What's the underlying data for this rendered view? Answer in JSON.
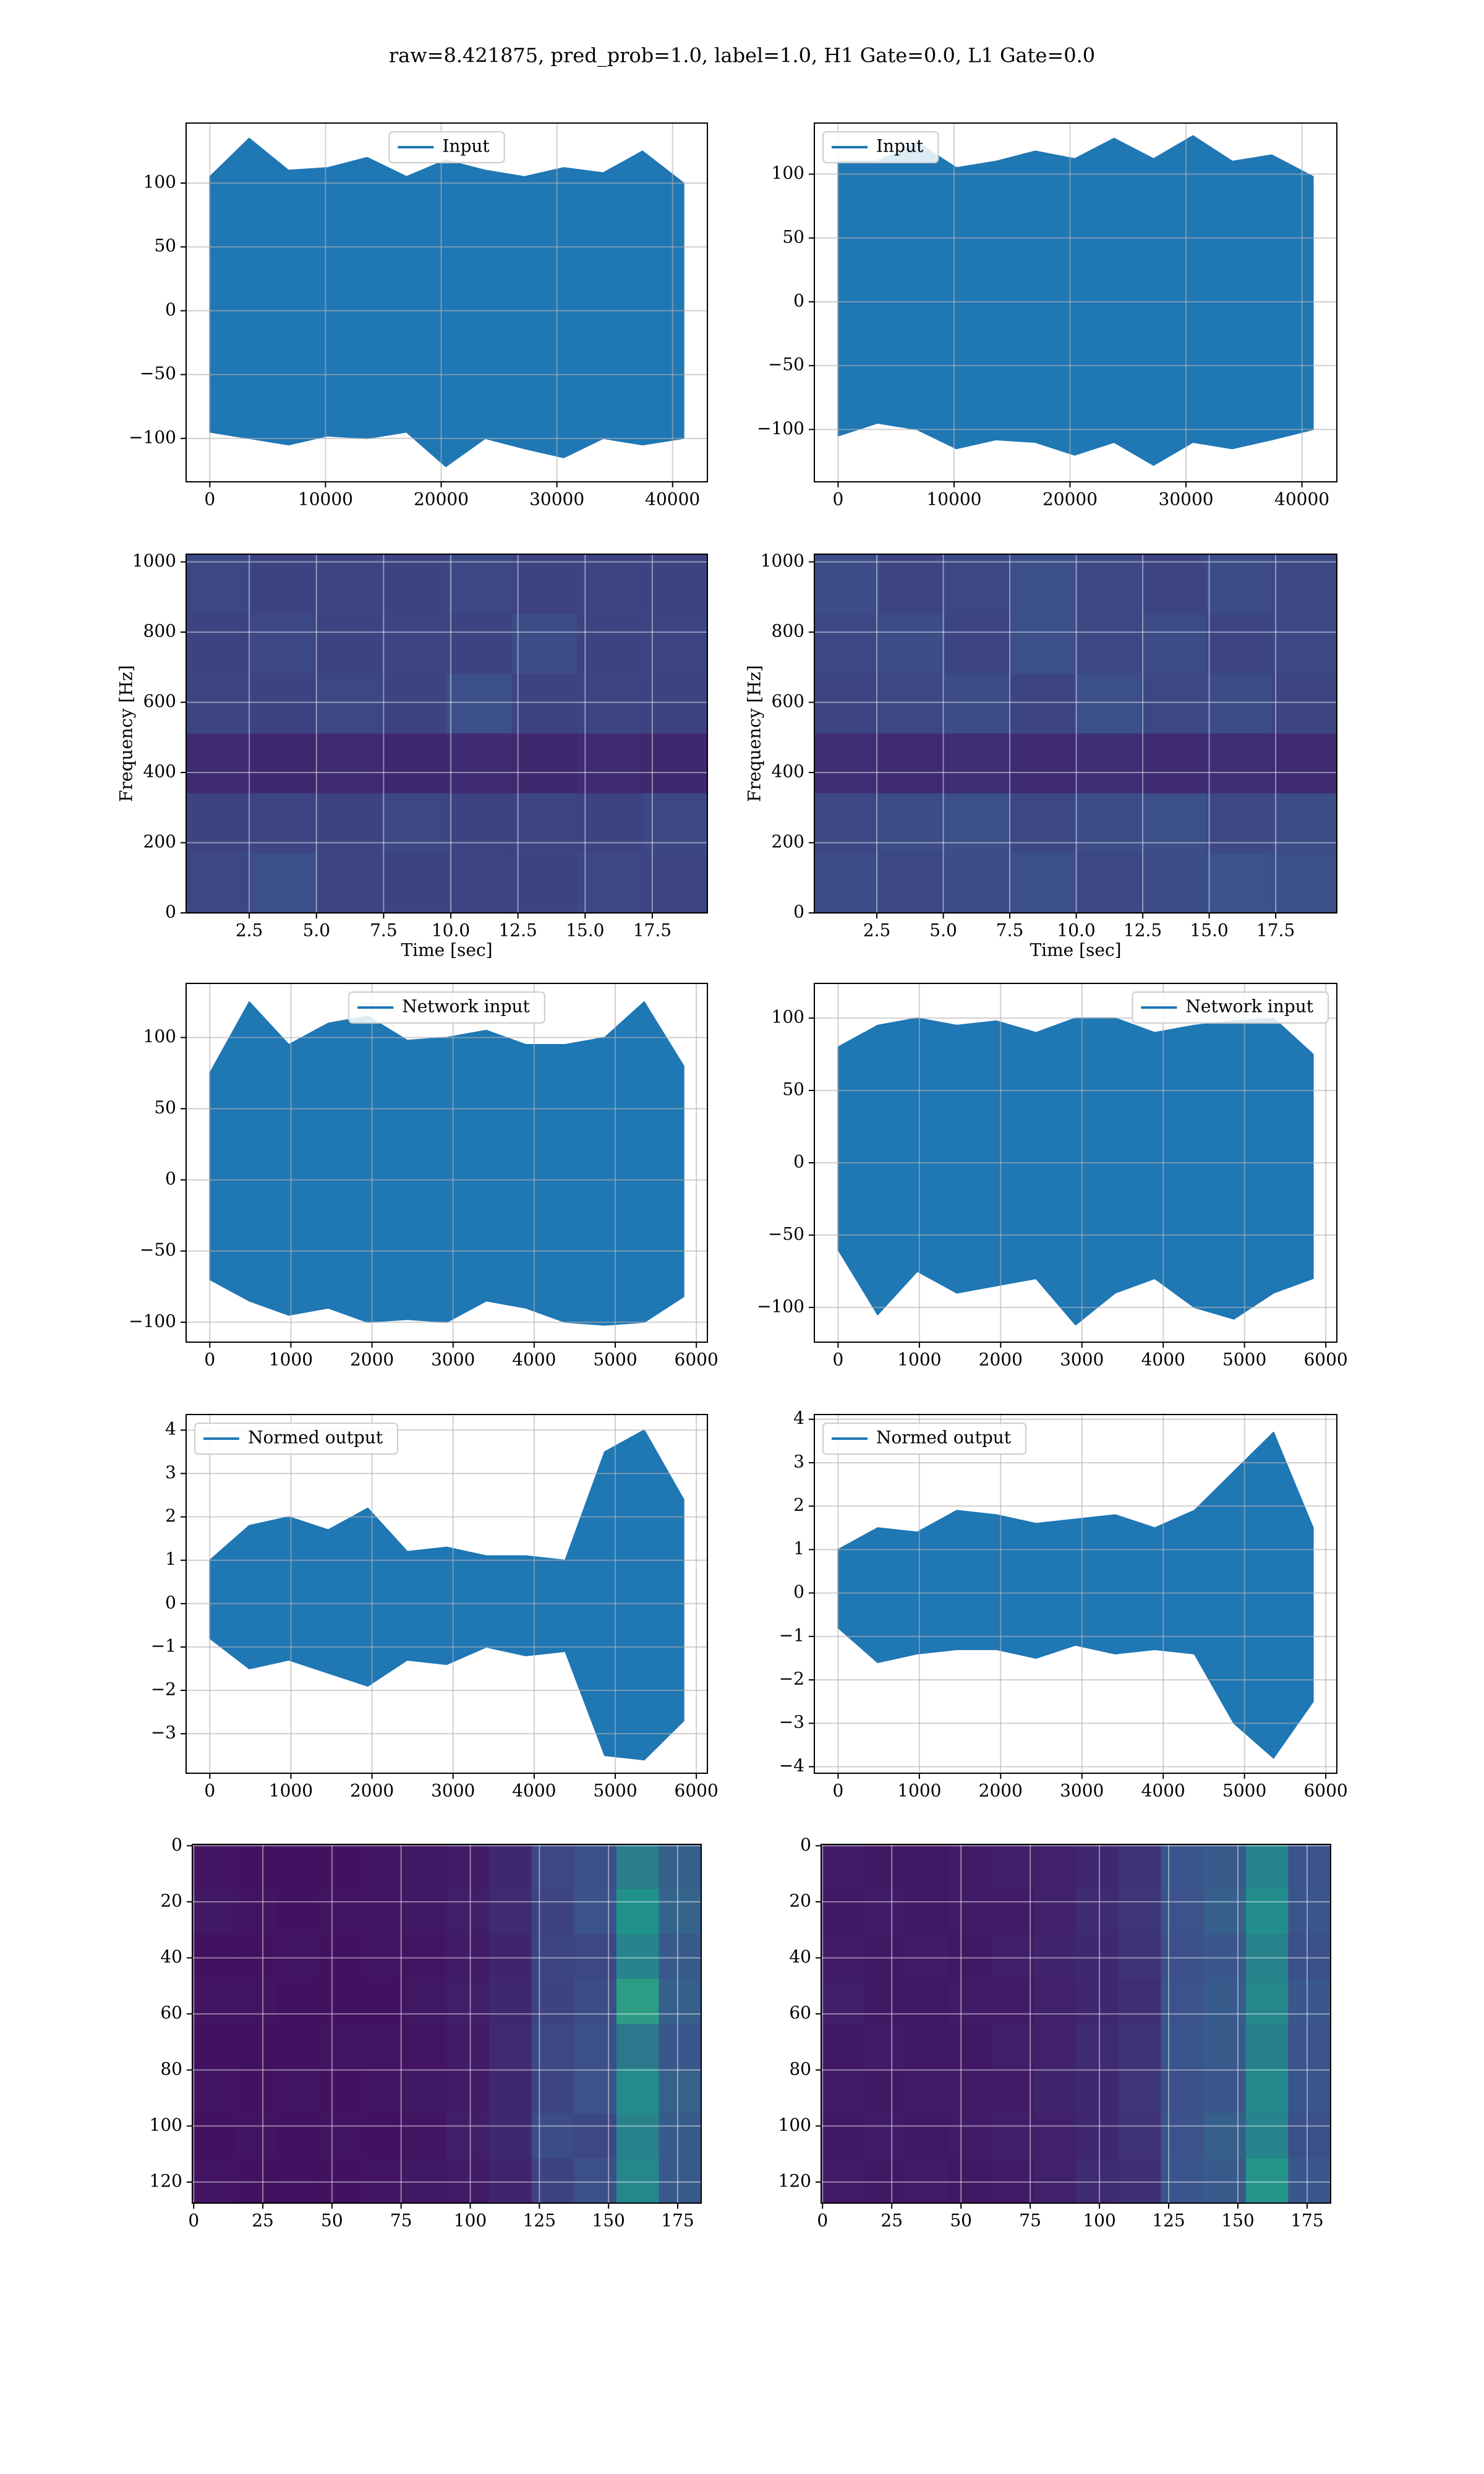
{
  "title": "raw=8.421875, pred_prob=1.0, label=1.0, H1 Gate=0.0, L1 Gate=0.0",
  "chart_data": [
    {
      "type": "line",
      "legend": "upper center",
      "grid": true,
      "x": [
        0,
        3400,
        6800,
        10200,
        13600,
        17000,
        20400,
        23800,
        27200,
        30600,
        34000,
        37400,
        40960
      ],
      "series": [
        {
          "name": "Input",
          "color": "#1f77b4",
          "high": [
            105,
            135,
            110,
            112,
            120,
            105,
            118,
            110,
            105,
            112,
            108,
            125,
            100
          ],
          "low": [
            -95,
            -100,
            -105,
            -98,
            -100,
            -95,
            -122,
            -100,
            -108,
            -115,
            -100,
            -105,
            -100
          ]
        }
      ],
      "xlim": [
        -2048,
        43008
      ],
      "ylim": [
        -134,
        147
      ],
      "xticks": [
        0,
        10000,
        20000,
        30000,
        40000
      ],
      "yticks": [
        {
          "value": -100,
          "label": "−100"
        },
        {
          "value": -50,
          "label": "−50"
        },
        0,
        50,
        100
      ]
    },
    {
      "type": "line",
      "legend": "upper left",
      "grid": true,
      "x": [
        0,
        3400,
        6800,
        10200,
        13600,
        17000,
        20400,
        23800,
        27200,
        30600,
        34000,
        37400,
        40960
      ],
      "series": [
        {
          "name": "Input",
          "color": "#1f77b4",
          "high": [
            110,
            110,
            125,
            105,
            110,
            118,
            112,
            128,
            112,
            130,
            110,
            115,
            98
          ],
          "low": [
            -105,
            -95,
            -100,
            -115,
            -108,
            -110,
            -120,
            -110,
            -128,
            -110,
            -115,
            -108,
            -100
          ]
        }
      ],
      "xlim": [
        -2048,
        43008
      ],
      "ylim": [
        -141,
        140
      ],
      "xticks": [
        0,
        10000,
        20000,
        30000,
        40000
      ],
      "yticks": [
        {
          "value": -100,
          "label": "−100"
        },
        {
          "value": -50,
          "label": "−50"
        },
        0,
        50,
        100
      ]
    },
    {
      "type": "heatmap",
      "grid": true,
      "xlabel": "Time [sec]",
      "ylabel": "Frequency [Hz]",
      "z": [
        [
          0.22,
          0.2,
          0.21,
          0.2,
          0.22,
          0.2,
          0.21,
          0.2
        ],
        [
          0.2,
          0.22,
          0.2,
          0.21,
          0.2,
          0.23,
          0.2,
          0.21
        ],
        [
          0.21,
          0.2,
          0.22,
          0.2,
          0.24,
          0.2,
          0.21,
          0.2
        ],
        [
          0.13,
          0.12,
          0.13,
          0.12,
          0.13,
          0.12,
          0.13,
          0.12
        ],
        [
          0.2,
          0.21,
          0.2,
          0.22,
          0.2,
          0.21,
          0.2,
          0.22
        ],
        [
          0.22,
          0.24,
          0.21,
          0.2,
          0.21,
          0.2,
          0.22,
          0.21
        ]
      ],
      "xlim": [
        0.15,
        19.55
      ],
      "ylim": [
        0,
        1022
      ],
      "xticks": [
        2.5,
        {
          "value": 5,
          "label": "5.0"
        },
        7.5,
        {
          "value": 10,
          "label": "10.0"
        },
        12.5,
        {
          "value": 15,
          "label": "15.0"
        },
        17.5
      ],
      "yticks": [
        0,
        200,
        400,
        600,
        800,
        1000
      ]
    },
    {
      "type": "heatmap",
      "grid": true,
      "xlabel": "Time [sec]",
      "ylabel": "Frequency [Hz]",
      "z": [
        [
          0.23,
          0.21,
          0.22,
          0.24,
          0.22,
          0.21,
          0.23,
          0.22
        ],
        [
          0.22,
          0.23,
          0.21,
          0.24,
          0.22,
          0.23,
          0.21,
          0.22
        ],
        [
          0.21,
          0.22,
          0.23,
          0.21,
          0.24,
          0.22,
          0.23,
          0.21
        ],
        [
          0.14,
          0.13,
          0.14,
          0.13,
          0.14,
          0.13,
          0.14,
          0.13
        ],
        [
          0.22,
          0.23,
          0.24,
          0.22,
          0.23,
          0.24,
          0.22,
          0.23
        ],
        [
          0.23,
          0.22,
          0.23,
          0.24,
          0.22,
          0.23,
          0.25,
          0.24
        ]
      ],
      "xlim": [
        0.15,
        19.8
      ],
      "ylim": [
        0,
        1022
      ],
      "xticks": [
        2.5,
        {
          "value": 5,
          "label": "5.0"
        },
        7.5,
        {
          "value": 10,
          "label": "10.0"
        },
        12.5,
        {
          "value": 15,
          "label": "15.0"
        },
        17.5
      ],
      "yticks": [
        0,
        200,
        400,
        600,
        800,
        1000
      ]
    },
    {
      "type": "line",
      "legend": "upper center",
      "grid": true,
      "x": [
        0,
        487,
        974,
        1461,
        1948,
        2435,
        2922,
        3409,
        3896,
        4383,
        4870,
        5357,
        5844
      ],
      "series": [
        {
          "name": "Network input",
          "color": "#1f77b4",
          "high": [
            75,
            125,
            95,
            110,
            115,
            98,
            100,
            105,
            95,
            95,
            100,
            125,
            80
          ],
          "low": [
            -70,
            -85,
            -95,
            -90,
            -100,
            -98,
            -100,
            -85,
            -90,
            -100,
            -102,
            -100,
            -82
          ]
        }
      ],
      "xlim": [
        -292,
        6136
      ],
      "ylim": [
        -114,
        138
      ],
      "xticks": [
        0,
        1000,
        2000,
        3000,
        4000,
        5000,
        6000
      ],
      "yticks": [
        {
          "value": -100,
          "label": "−100"
        },
        {
          "value": -50,
          "label": "−50"
        },
        0,
        50,
        100
      ]
    },
    {
      "type": "line",
      "legend": "upper right",
      "grid": true,
      "x": [
        0,
        487,
        974,
        1461,
        1948,
        2435,
        2922,
        3409,
        3896,
        4383,
        4870,
        5357,
        5844
      ],
      "series": [
        {
          "name": "Network input",
          "color": "#1f77b4",
          "high": [
            80,
            95,
            100,
            95,
            98,
            90,
            100,
            100,
            90,
            95,
            98,
            100,
            75
          ],
          "low": [
            -60,
            -105,
            -75,
            -90,
            -85,
            -80,
            -112,
            -90,
            -80,
            -100,
            -108,
            -90,
            -80
          ]
        }
      ],
      "xlim": [
        -292,
        6136
      ],
      "ylim": [
        -124,
        124
      ],
      "xticks": [
        0,
        1000,
        2000,
        3000,
        4000,
        5000,
        6000
      ],
      "yticks": [
        {
          "value": -100,
          "label": "−100"
        },
        {
          "value": -50,
          "label": "−50"
        },
        0,
        50,
        100
      ]
    },
    {
      "type": "line",
      "legend": "upper left",
      "grid": true,
      "x": [
        0,
        487,
        974,
        1461,
        1948,
        2435,
        2922,
        3409,
        3896,
        4383,
        4870,
        5357,
        5844
      ],
      "series": [
        {
          "name": "Normed output",
          "color": "#1f77b4",
          "high": [
            1.0,
            1.8,
            2.0,
            1.7,
            2.2,
            1.2,
            1.3,
            1.1,
            1.1,
            1.0,
            3.5,
            4.0,
            2.4
          ],
          "low": [
            -0.8,
            -1.5,
            -1.3,
            -1.6,
            -1.9,
            -1.3,
            -1.4,
            -1.0,
            -1.2,
            -1.1,
            -3.5,
            -3.6,
            -2.7
          ]
        }
      ],
      "xlim": [
        -292,
        6136
      ],
      "ylim": [
        -3.91,
        4.36
      ],
      "xticks": [
        0,
        1000,
        2000,
        3000,
        4000,
        5000,
        6000
      ],
      "yticks": [
        {
          "value": -3,
          "label": "−3"
        },
        {
          "value": -2,
          "label": "−2"
        },
        {
          "value": -1,
          "label": "−1"
        },
        0,
        1,
        2,
        3,
        4
      ]
    },
    {
      "type": "line",
      "legend": "upper left",
      "grid": true,
      "x": [
        0,
        487,
        974,
        1461,
        1948,
        2435,
        2922,
        3409,
        3896,
        4383,
        4870,
        5357,
        5844
      ],
      "series": [
        {
          "name": "Normed output",
          "color": "#1f77b4",
          "high": [
            1.0,
            1.5,
            1.4,
            1.9,
            1.8,
            1.6,
            1.7,
            1.8,
            1.5,
            1.9,
            2.8,
            3.7,
            1.5
          ],
          "low": [
            -0.8,
            -1.6,
            -1.4,
            -1.3,
            -1.3,
            -1.5,
            -1.2,
            -1.4,
            -1.3,
            -1.4,
            -3.0,
            -3.8,
            -2.5
          ]
        }
      ],
      "xlim": [
        -292,
        6136
      ],
      "ylim": [
        -4.15,
        4.11
      ],
      "xticks": [
        0,
        1000,
        2000,
        3000,
        4000,
        5000,
        6000
      ],
      "yticks": [
        {
          "value": -4,
          "label": "−4"
        },
        {
          "value": -3,
          "label": "−3"
        },
        {
          "value": -2,
          "label": "−2"
        },
        {
          "value": -1,
          "label": "−1"
        },
        0,
        1,
        2,
        3,
        4
      ]
    },
    {
      "type": "heatmap",
      "grid": true,
      "z": [
        [
          0.06,
          0.05,
          0.05,
          0.05,
          0.06,
          0.07,
          0.08,
          0.12,
          0.22,
          0.24,
          0.42,
          0.3
        ],
        [
          0.07,
          0.06,
          0.05,
          0.06,
          0.06,
          0.07,
          0.09,
          0.13,
          0.2,
          0.25,
          0.5,
          0.32
        ],
        [
          0.05,
          0.05,
          0.06,
          0.05,
          0.06,
          0.06,
          0.08,
          0.11,
          0.21,
          0.22,
          0.45,
          0.28
        ],
        [
          0.06,
          0.06,
          0.05,
          0.05,
          0.05,
          0.07,
          0.09,
          0.12,
          0.2,
          0.23,
          0.55,
          0.3
        ],
        [
          0.05,
          0.05,
          0.05,
          0.06,
          0.06,
          0.06,
          0.08,
          0.13,
          0.22,
          0.24,
          0.4,
          0.27
        ],
        [
          0.06,
          0.05,
          0.06,
          0.05,
          0.06,
          0.07,
          0.08,
          0.12,
          0.21,
          0.25,
          0.48,
          0.31
        ],
        [
          0.05,
          0.06,
          0.05,
          0.06,
          0.05,
          0.06,
          0.09,
          0.12,
          0.23,
          0.22,
          0.44,
          0.29
        ],
        [
          0.06,
          0.05,
          0.05,
          0.05,
          0.06,
          0.07,
          0.08,
          0.11,
          0.2,
          0.24,
          0.46,
          0.28
        ]
      ],
      "xlim": [
        -0.5,
        183.5
      ],
      "ylim": [
        127.5,
        -0.5
      ],
      "xticks": [
        0,
        25,
        50,
        75,
        100,
        125,
        150,
        175
      ],
      "yticks": [
        0,
        20,
        40,
        60,
        80,
        100,
        120
      ]
    },
    {
      "type": "heatmap",
      "grid": true,
      "z": [
        [
          0.08,
          0.07,
          0.07,
          0.08,
          0.09,
          0.1,
          0.12,
          0.15,
          0.26,
          0.28,
          0.45,
          0.25
        ],
        [
          0.07,
          0.08,
          0.07,
          0.08,
          0.08,
          0.1,
          0.13,
          0.16,
          0.25,
          0.3,
          0.48,
          0.26
        ],
        [
          0.08,
          0.07,
          0.08,
          0.07,
          0.09,
          0.11,
          0.12,
          0.15,
          0.24,
          0.27,
          0.44,
          0.24
        ],
        [
          0.09,
          0.07,
          0.07,
          0.08,
          0.08,
          0.1,
          0.12,
          0.14,
          0.25,
          0.29,
          0.46,
          0.27
        ],
        [
          0.07,
          0.08,
          0.07,
          0.07,
          0.09,
          0.1,
          0.13,
          0.15,
          0.26,
          0.28,
          0.43,
          0.25
        ],
        [
          0.08,
          0.07,
          0.08,
          0.08,
          0.08,
          0.11,
          0.12,
          0.16,
          0.24,
          0.27,
          0.47,
          0.26
        ],
        [
          0.07,
          0.08,
          0.07,
          0.08,
          0.09,
          0.1,
          0.12,
          0.15,
          0.25,
          0.3,
          0.45,
          0.24
        ],
        [
          0.08,
          0.07,
          0.08,
          0.07,
          0.08,
          0.1,
          0.13,
          0.14,
          0.26,
          0.28,
          0.52,
          0.27
        ]
      ],
      "xlim": [
        -0.5,
        183.5
      ],
      "ylim": [
        127.5,
        -0.5
      ],
      "xticks": [
        0,
        25,
        50,
        75,
        100,
        125,
        150,
        175
      ],
      "yticks": [
        0,
        20,
        40,
        60,
        80,
        100,
        120
      ]
    }
  ]
}
